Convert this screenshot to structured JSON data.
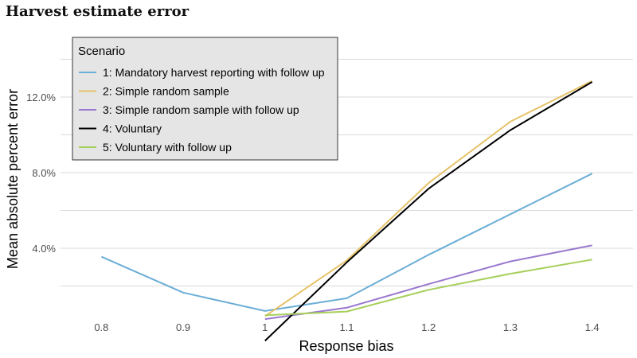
{
  "title": "Harvest estimate error",
  "chart_data": {
    "type": "line",
    "title": "Harvest estimate error",
    "xlabel": "Response bias",
    "ylabel": "Mean absolute percent error",
    "xlim": [
      0.75,
      1.45
    ],
    "ylim": [
      0.0,
      0.15
    ],
    "x_ticks": [
      0.8,
      0.9,
      1.0,
      1.1,
      1.2,
      1.3,
      1.4
    ],
    "x_tick_labels": [
      "0.8",
      "0.9",
      "1",
      "1.1",
      "1.2",
      "1.3",
      "1.4"
    ],
    "y_ticks": [
      0.04,
      0.08,
      0.12
    ],
    "y_tick_labels": [
      "4.0%",
      "8.0%",
      "12.0%"
    ],
    "grid": true,
    "legend": {
      "title": "Scenario",
      "placement": "top-left"
    },
    "series": [
      {
        "name": "1: Mandatory harvest reporting with follow up",
        "color": "#6baed6",
        "x": [
          0.8,
          0.9,
          1.0,
          1.1,
          1.2,
          1.3,
          1.4
        ],
        "y": [
          0.0355,
          0.0165,
          0.0068,
          0.0135,
          0.0365,
          0.058,
          0.0795
        ]
      },
      {
        "name": "2: Simple random sample",
        "color": "#e6c36a",
        "x": [
          1.0,
          1.1,
          1.2,
          1.3,
          1.4
        ],
        "y": [
          0.004,
          0.0335,
          0.0745,
          0.107,
          0.1285
        ]
      },
      {
        "name": "3: Simple random sample with follow up",
        "color": "#9a79cf",
        "x": [
          1.0,
          1.1,
          1.2,
          1.3,
          1.4
        ],
        "y": [
          0.0025,
          0.0085,
          0.021,
          0.033,
          0.0415
        ]
      },
      {
        "name": "4: Voluntary",
        "color": "#000000",
        "x": [
          1.0,
          1.1,
          1.2,
          1.3,
          1.4
        ],
        "y": [
          -0.009,
          0.0325,
          0.0715,
          0.1025,
          0.128
        ]
      },
      {
        "name": "5: Voluntary with follow up",
        "color": "#a6cf5a",
        "x": [
          1.0,
          1.1,
          1.2,
          1.3,
          1.4
        ],
        "y": [
          0.0045,
          0.0065,
          0.018,
          0.0265,
          0.034
        ]
      }
    ]
  }
}
